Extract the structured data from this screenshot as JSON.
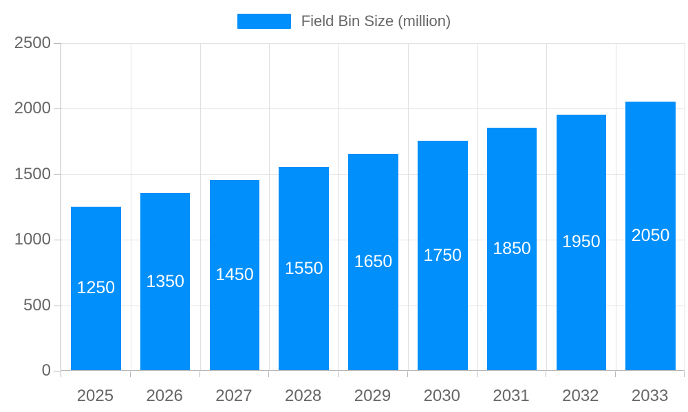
{
  "legend": {
    "label": "Field Bin Size (million)"
  },
  "colors": {
    "bar": "#008FFB",
    "axis_label_text": "#666666",
    "legend_text": "#666666",
    "gridline": "#e0e0e0",
    "axis_line": "#b6b6b6",
    "data_label_text": "#ffffff",
    "background": "#ffffff"
  },
  "chart_data": {
    "type": "bar",
    "title": "",
    "categories": [
      "2025",
      "2026",
      "2027",
      "2028",
      "2029",
      "2030",
      "2031",
      "2032",
      "2033"
    ],
    "series": [
      {
        "name": "Field Bin Size (million)",
        "values": [
          1250,
          1350,
          1450,
          1550,
          1650,
          1750,
          1850,
          1950,
          2050
        ]
      }
    ],
    "xlabel": "",
    "ylabel": "",
    "ylim": [
      0,
      2500
    ],
    "yticks": [
      0,
      500,
      1000,
      1500,
      2000,
      2500
    ],
    "grid": true,
    "legend_position": "top",
    "data_labels": "inside-center"
  }
}
